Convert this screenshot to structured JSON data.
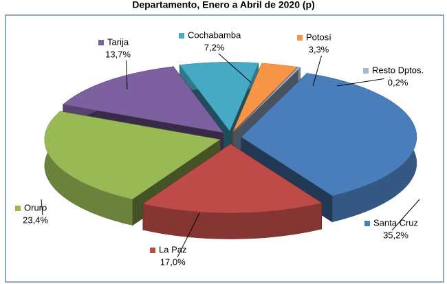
{
  "chart_data": {
    "type": "pie3d",
    "title": "Departamento, Enero a Abril de 2020 (p)",
    "categories": [
      "Santa Cruz",
      "La Paz",
      "Oruro",
      "Tarija",
      "Cochabamba",
      "Potosí",
      "Resto Dptos."
    ],
    "values": [
      35.2,
      17.0,
      23.4,
      13.7,
      7.2,
      3.3,
      0.2
    ],
    "value_labels": [
      "35,2%",
      "17,0%",
      "23,4%",
      "13,7%",
      "7,2%",
      "3,3%",
      "0,2%"
    ],
    "colors": [
      "#4a7ebb",
      "#be4b48",
      "#98b954",
      "#7d60a0",
      "#46aac5",
      "#f79646",
      "#a5b6d6"
    ]
  }
}
